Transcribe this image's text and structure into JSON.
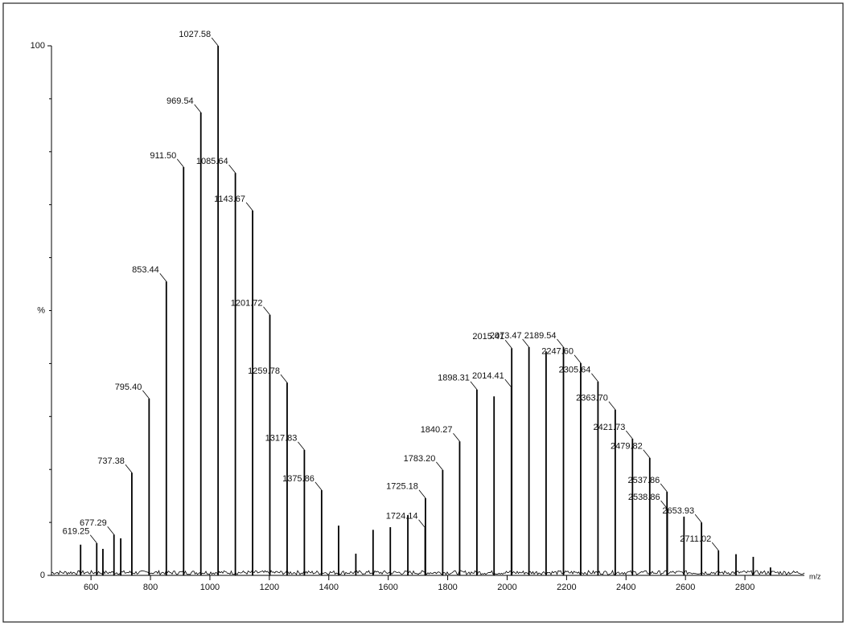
{
  "chart_data": {
    "type": "spectrum",
    "xlabel": "m/z",
    "ylabel": "%",
    "xlim": [
      467,
      3000
    ],
    "ylim": [
      0,
      100
    ],
    "xticks": [
      600,
      800,
      1000,
      1200,
      1400,
      1600,
      1800,
      2000,
      2200,
      2400,
      2600,
      2800
    ],
    "yticks": [
      0,
      100
    ],
    "yticks_minor": [
      10,
      20,
      30,
      40,
      50,
      60,
      70,
      80,
      90
    ],
    "color": "#000000",
    "x": [
      565,
      619.25,
      640,
      677.29,
      700,
      737.38,
      795.4,
      853.44,
      911.5,
      969.54,
      1027.58,
      1085.64,
      1143.67,
      1201.72,
      1259.78,
      1317.83,
      1375.86,
      1433,
      1491,
      1549,
      1607,
      1666,
      1724.14,
      1725.18,
      1783.2,
      1840.27,
      1898.31,
      1956,
      2014.41,
      2015.41,
      2073.47,
      2131,
      2189.54,
      2247.6,
      2305.64,
      2363.7,
      2421.73,
      2479.82,
      2537.86,
      2538.86,
      2595,
      2653.93,
      2711.02,
      2770,
      2828,
      2886
    ],
    "values": [
      5.8,
      6.1,
      5,
      7.7,
      7,
      19.4,
      33.4,
      55.5,
      77.1,
      87.4,
      100,
      76,
      68.9,
      49.2,
      36.4,
      23.7,
      16.1,
      9.4,
      4.1,
      8.6,
      9.1,
      11.4,
      9,
      14.6,
      19.9,
      25.3,
      35.1,
      33.8,
      35.5,
      42.9,
      43.1,
      42.3,
      43.1,
      40.1,
      36.6,
      31.3,
      25.8,
      22.2,
      15.8,
      12.6,
      11.1,
      10,
      4.7,
      4,
      3.5,
      1.5
    ],
    "labels": [
      null,
      "619.25",
      null,
      "677.29",
      null,
      "737.38",
      "795.40",
      "853.44",
      "911.50",
      "969.54",
      "1027.58",
      "1085.64",
      "1143.67",
      "1201.72",
      "1259.78",
      "1317.83",
      "1375.86",
      null,
      null,
      null,
      null,
      null,
      "1724.14",
      "1725.18",
      "1783.20",
      "1840.27",
      "1898.31",
      null,
      "2014.41",
      "2015.41",
      "2073.47",
      null,
      "2189.54",
      "2247.60",
      "2305.64",
      "2363.70",
      "2421.73",
      "2479.82",
      "2537.86",
      "2538.86",
      null,
      "2653.93",
      "2711.02",
      null,
      null,
      null
    ]
  }
}
